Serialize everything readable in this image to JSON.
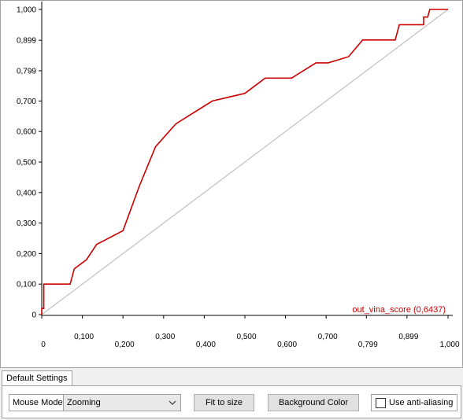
{
  "chart_data": {
    "type": "line",
    "title": "",
    "xlabel": "",
    "ylabel": "",
    "xlim": [
      0,
      1.0
    ],
    "ylim": [
      0,
      1.0
    ],
    "x_ticks": [
      {
        "value": 0,
        "label": "0"
      },
      {
        "value": 0.1,
        "label": "0,100"
      },
      {
        "value": 0.2,
        "label": "0,200"
      },
      {
        "value": 0.3,
        "label": "0,300"
      },
      {
        "value": 0.4,
        "label": "0,400"
      },
      {
        "value": 0.5,
        "label": "0,500"
      },
      {
        "value": 0.6,
        "label": "0,600"
      },
      {
        "value": 0.7,
        "label": "0,700"
      },
      {
        "value": 0.799,
        "label": "0,799"
      },
      {
        "value": 0.899,
        "label": "0,899"
      },
      {
        "value": 1.0,
        "label": "1,000"
      }
    ],
    "y_ticks": [
      {
        "value": 0,
        "label": "0"
      },
      {
        "value": 0.1,
        "label": "0,100"
      },
      {
        "value": 0.2,
        "label": "0,200"
      },
      {
        "value": 0.3,
        "label": "0,300"
      },
      {
        "value": 0.4,
        "label": "0,400"
      },
      {
        "value": 0.5,
        "label": "0,500"
      },
      {
        "value": 0.6,
        "label": "0,600"
      },
      {
        "value": 0.7,
        "label": "0,700"
      },
      {
        "value": 0.799,
        "label": "0,799"
      },
      {
        "value": 0.899,
        "label": "0,899"
      },
      {
        "value": 1.0,
        "label": "1,000"
      }
    ],
    "series": [
      {
        "name": "out_vina_score",
        "legend_label": "out_vina_score (0,6437)",
        "color": "#cc0000",
        "x": [
          0,
          0,
          0.005,
          0.005,
          0.07,
          0.08,
          0.11,
          0.135,
          0.2,
          0.24,
          0.28,
          0.33,
          0.42,
          0.5,
          0.55,
          0.615,
          0.675,
          0.705,
          0.755,
          0.79,
          0.87,
          0.88,
          0.94,
          0.94,
          0.95,
          0.955,
          0.955,
          1.0
        ],
        "y": [
          0,
          0.02,
          0.02,
          0.1,
          0.1,
          0.15,
          0.18,
          0.23,
          0.275,
          0.42,
          0.55,
          0.625,
          0.7,
          0.725,
          0.775,
          0.775,
          0.825,
          0.825,
          0.845,
          0.9,
          0.9,
          0.95,
          0.95,
          0.975,
          0.975,
          1.0,
          1.0,
          1.0
        ]
      },
      {
        "name": "",
        "color": "#c0c0c0",
        "x": [
          0,
          1.0
        ],
        "y": [
          0,
          1.0
        ]
      }
    ],
    "grid": false,
    "legend_position": "bottom-right"
  },
  "tabs": [
    {
      "label": "Default Settings"
    }
  ],
  "settings": {
    "mouse_mode_label": "Mouse Mode",
    "mouse_mode_value": "Zooming",
    "fit_button": "Fit to size",
    "bg_button": "Background Color",
    "anti_alias_label": "Use anti-aliasing",
    "anti_alias_checked": false
  }
}
